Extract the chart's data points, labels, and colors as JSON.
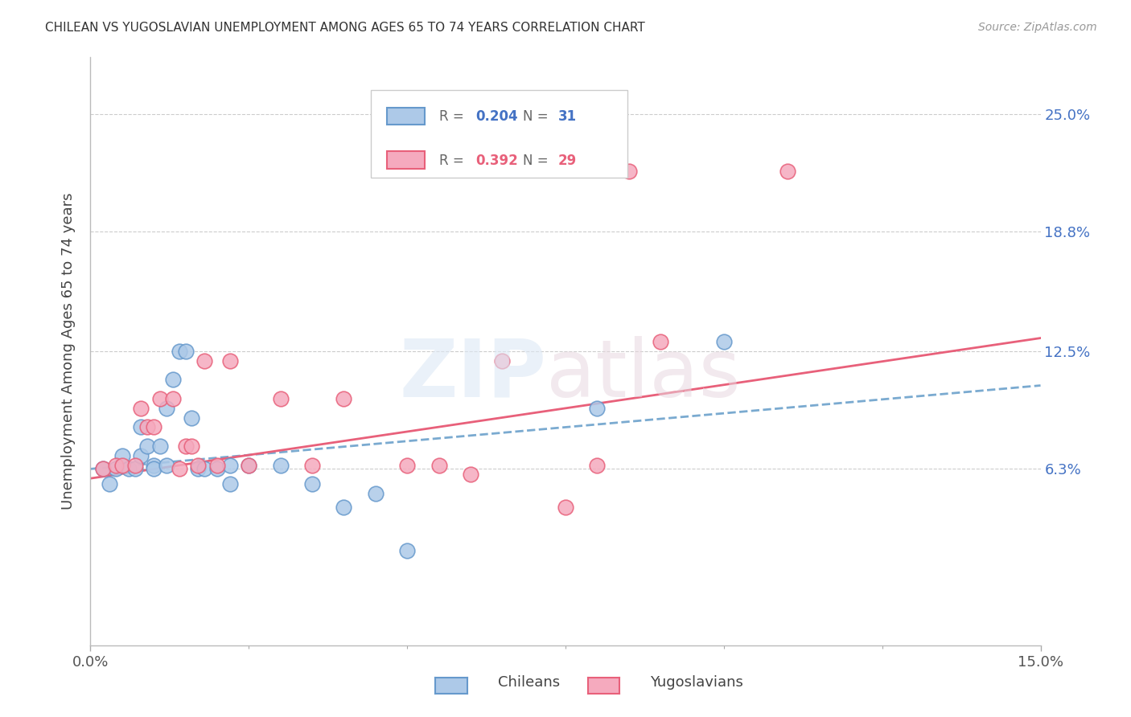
{
  "title": "CHILEAN VS YUGOSLAVIAN UNEMPLOYMENT AMONG AGES 65 TO 74 YEARS CORRELATION CHART",
  "source": "Source: ZipAtlas.com",
  "ylabel": "Unemployment Among Ages 65 to 74 years",
  "xlim": [
    0.0,
    0.15
  ],
  "ylim": [
    -0.03,
    0.28
  ],
  "ytick_labels": [
    "6.3%",
    "12.5%",
    "18.8%",
    "25.0%"
  ],
  "ytick_values": [
    0.063,
    0.125,
    0.188,
    0.25
  ],
  "xtick_labels": [
    "0.0%",
    "15.0%"
  ],
  "xtick_values": [
    0.0,
    0.15
  ],
  "minor_xtick_values": [
    0.025,
    0.05,
    0.075,
    0.1,
    0.125
  ],
  "chilean_color": "#adc9e8",
  "yugoslavian_color": "#f5aabe",
  "chilean_edge_color": "#6699cc",
  "yugoslavian_edge_color": "#e8607a",
  "chilean_line_color": "#7aaad0",
  "yugoslavian_line_color": "#e8607a",
  "chileans_scatter_x": [
    0.002,
    0.003,
    0.004,
    0.005,
    0.006,
    0.007,
    0.008,
    0.008,
    0.009,
    0.01,
    0.01,
    0.011,
    0.012,
    0.012,
    0.013,
    0.014,
    0.015,
    0.016,
    0.017,
    0.018,
    0.02,
    0.022,
    0.022,
    0.025,
    0.03,
    0.035,
    0.04,
    0.045,
    0.05,
    0.08,
    0.1
  ],
  "chileans_scatter_y": [
    0.063,
    0.055,
    0.063,
    0.07,
    0.063,
    0.063,
    0.07,
    0.085,
    0.075,
    0.065,
    0.063,
    0.075,
    0.095,
    0.065,
    0.11,
    0.125,
    0.125,
    0.09,
    0.063,
    0.063,
    0.063,
    0.055,
    0.065,
    0.065,
    0.065,
    0.055,
    0.043,
    0.05,
    0.02,
    0.095,
    0.13
  ],
  "yugoslavians_scatter_x": [
    0.002,
    0.004,
    0.005,
    0.007,
    0.008,
    0.009,
    0.01,
    0.011,
    0.013,
    0.014,
    0.015,
    0.016,
    0.017,
    0.018,
    0.02,
    0.022,
    0.025,
    0.03,
    0.035,
    0.04,
    0.05,
    0.055,
    0.06,
    0.065,
    0.075,
    0.08,
    0.085,
    0.09,
    0.11
  ],
  "yugoslavians_scatter_y": [
    0.063,
    0.065,
    0.065,
    0.065,
    0.095,
    0.085,
    0.085,
    0.1,
    0.1,
    0.063,
    0.075,
    0.075,
    0.065,
    0.12,
    0.065,
    0.12,
    0.065,
    0.1,
    0.065,
    0.1,
    0.065,
    0.065,
    0.06,
    0.12,
    0.043,
    0.065,
    0.22,
    0.13,
    0.22
  ],
  "chilean_trend_x": [
    0.0,
    0.15
  ],
  "chilean_trend_y": [
    0.063,
    0.107
  ],
  "yugoslavian_trend_x": [
    0.0,
    0.15
  ],
  "yugoslavian_trend_y": [
    0.058,
    0.132
  ]
}
